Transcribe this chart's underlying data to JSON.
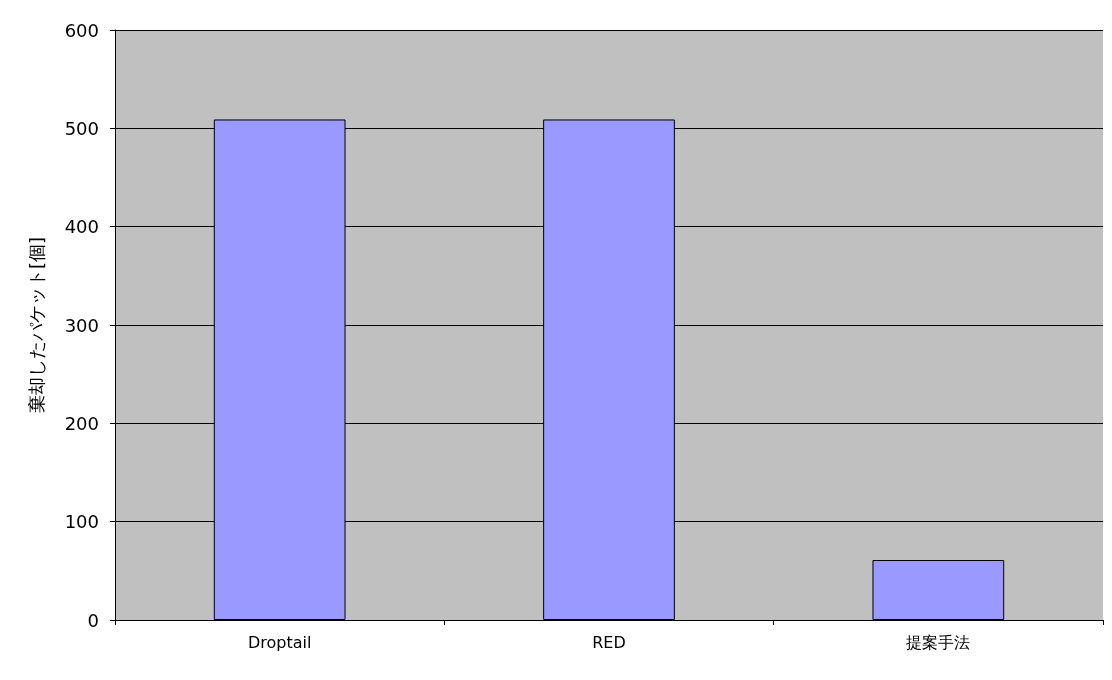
{
  "chart_data": {
    "type": "bar",
    "ylabel": "棄却したパケット[個]",
    "categories": [
      "Droptail",
      "RED",
      "提案手法"
    ],
    "values": [
      509,
      509,
      61
    ],
    "color": "#9999ff",
    "ylim": [
      0,
      600
    ],
    "yticks": [
      0,
      100,
      200,
      300,
      400,
      500,
      600
    ],
    "grid": "y"
  }
}
